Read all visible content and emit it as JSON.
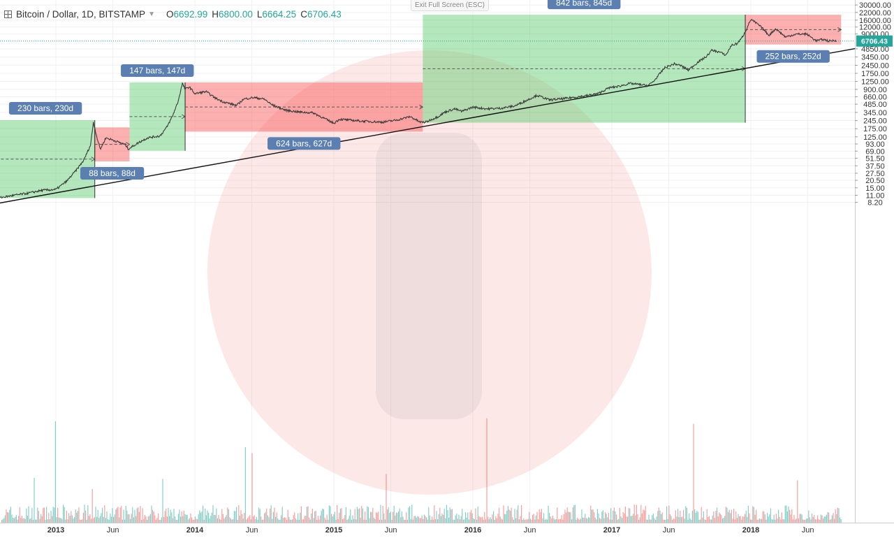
{
  "header": {
    "symbol": "Bitcoin / Dollar, 1D, BITSTAMP",
    "open_label": "O",
    "open": "6692.99",
    "high_label": "H",
    "high": "6800.00",
    "low_label": "L",
    "low": "6664.25",
    "close_label": "C",
    "close": "6706.43"
  },
  "exit_fullscreen": "Exit Full Screen (ESC)",
  "colors": {
    "up": "#26a69a",
    "down": "#ef5350",
    "green_zone": "rgba(76,200,96,0.42)",
    "red_zone": "rgba(248,80,80,0.45)",
    "label_bg": "#5b7fb0",
    "price_tag": "#26a69a",
    "watermark": "rgba(240,80,80,0.13)"
  },
  "chart_data": {
    "type": "line",
    "title": "Bitcoin / Dollar, 1D, BITSTAMP",
    "scale": "log",
    "ylim": [
      7.3,
      31000
    ],
    "xlim": [
      2012.55,
      2018.75
    ],
    "y_ticks": [
      "30000.00",
      "22000.00",
      "16000.00",
      "12000.00",
      "9000.00",
      "6706.43",
      "4850.00",
      "3450.00",
      "2450.00",
      "1750.00",
      "1250.00",
      "900.00",
      "660.00",
      "485.00",
      "345.00",
      "245.00",
      "175.00",
      "125.00",
      "93.00",
      "69.00",
      "51.50",
      "37.50",
      "27.50",
      "20.50",
      "15.00",
      "11.00",
      "8.20"
    ],
    "y_tick_values": [
      30000,
      22000,
      16000,
      12000,
      9000,
      6706.43,
      4850,
      3450,
      2450,
      1750,
      1250,
      900,
      660,
      485,
      345,
      245,
      175,
      125,
      93,
      69,
      51.5,
      37.5,
      27.5,
      20.5,
      15,
      11,
      8.2
    ],
    "x_ticks": [
      {
        "label": "2013",
        "t": 2013.0,
        "major": true
      },
      {
        "label": "Jun",
        "t": 2013.41,
        "major": false
      },
      {
        "label": "2014",
        "t": 2014.0,
        "major": true
      },
      {
        "label": "Jun",
        "t": 2014.41,
        "major": false
      },
      {
        "label": "2015",
        "t": 2015.0,
        "major": true
      },
      {
        "label": "Jun",
        "t": 2015.41,
        "major": false
      },
      {
        "label": "2016",
        "t": 2016.0,
        "major": true
      },
      {
        "label": "Jun",
        "t": 2016.41,
        "major": false
      },
      {
        "label": "2017",
        "t": 2017.0,
        "major": true
      },
      {
        "label": "Jun",
        "t": 2017.41,
        "major": false
      },
      {
        "label": "2018",
        "t": 2018.0,
        "major": true
      },
      {
        "label": "Jun",
        "t": 2018.41,
        "major": false
      }
    ],
    "current_price": 6706.43,
    "current_price_label": "6706.43",
    "price": {
      "t": [
        2012.55,
        2012.7,
        2012.8,
        2012.9,
        2013.0,
        2013.08,
        2013.15,
        2013.2,
        2013.25,
        2013.27,
        2013.3,
        2013.32,
        2013.36,
        2013.43,
        2013.5,
        2013.52,
        2013.6,
        2013.66,
        2013.75,
        2013.8,
        2013.84,
        2013.88,
        2013.91,
        2013.93,
        2013.96,
        2014.0,
        2014.08,
        2014.15,
        2014.2,
        2014.3,
        2014.35,
        2014.42,
        2014.5,
        2014.55,
        2014.65,
        2014.75,
        2014.85,
        2015.0,
        2015.04,
        2015.2,
        2015.35,
        2015.45,
        2015.55,
        2015.62,
        2015.66,
        2015.75,
        2015.8,
        2015.87,
        2015.92,
        2016.0,
        2016.1,
        2016.2,
        2016.3,
        2016.4,
        2016.46,
        2016.5,
        2016.55,
        2016.65,
        2016.8,
        2016.9,
        2016.98,
        2017.05,
        2017.13,
        2017.2,
        2017.26,
        2017.3,
        2017.38,
        2017.45,
        2017.5,
        2017.55,
        2017.62,
        2017.68,
        2017.72,
        2017.78,
        2017.82,
        2017.86,
        2017.9,
        2017.93,
        2017.96,
        2018.0,
        2018.05,
        2018.09,
        2018.13,
        2018.18,
        2018.25,
        2018.32,
        2018.4,
        2018.47,
        2018.52,
        2018.56,
        2018.62
      ],
      "v": [
        9.5,
        11,
        12,
        13.5,
        14,
        20,
        32,
        47,
        90,
        230,
        110,
        75,
        120,
        105,
        90,
        75,
        100,
        120,
        130,
        190,
        300,
        550,
        1150,
        900,
        1000,
        750,
        820,
        620,
        540,
        460,
        600,
        640,
        600,
        480,
        380,
        350,
        340,
        220,
        260,
        240,
        230,
        250,
        290,
        230,
        230,
        290,
        350,
        400,
        360,
        430,
        400,
        410,
        450,
        590,
        700,
        650,
        580,
        610,
        680,
        750,
        960,
        1020,
        1150,
        1100,
        1050,
        1250,
        2200,
        2600,
        2400,
        2000,
        2800,
        3500,
        4600,
        4200,
        3700,
        5600,
        6000,
        7300,
        9800,
        16500,
        13500,
        11000,
        8500,
        11200,
        7900,
        8900,
        9000,
        6800,
        7200,
        6700,
        6900
      ]
    },
    "trendline": {
      "t": [
        2012.55,
        2018.75
      ],
      "v": [
        7.6,
        4900
      ]
    },
    "zones": [
      {
        "type": "up",
        "label": "230 bars, 230d",
        "t0": 2012.57,
        "t1": 2013.28,
        "lo": 9.8,
        "hi": 250
      },
      {
        "type": "down",
        "label": "88 bars, 88d",
        "t0": 2013.28,
        "t1": 2013.53,
        "lo": 45,
        "hi": 185
      },
      {
        "type": "up",
        "label": "147 bars, 147d",
        "t0": 2013.53,
        "t1": 2013.93,
        "lo": 70,
        "hi": 1200
      },
      {
        "type": "down",
        "label": "624 bars, 627d",
        "t0": 2013.93,
        "t1": 2015.64,
        "lo": 155,
        "hi": 1200
      },
      {
        "type": "up",
        "label": "842 bars, 845d",
        "t0": 2015.64,
        "t1": 2017.96,
        "lo": 225,
        "hi": 20000
      },
      {
        "type": "down",
        "label": "252 bars, 252d",
        "t0": 2017.96,
        "t1": 2018.65,
        "lo": 5800,
        "hi": 20000
      }
    ]
  }
}
